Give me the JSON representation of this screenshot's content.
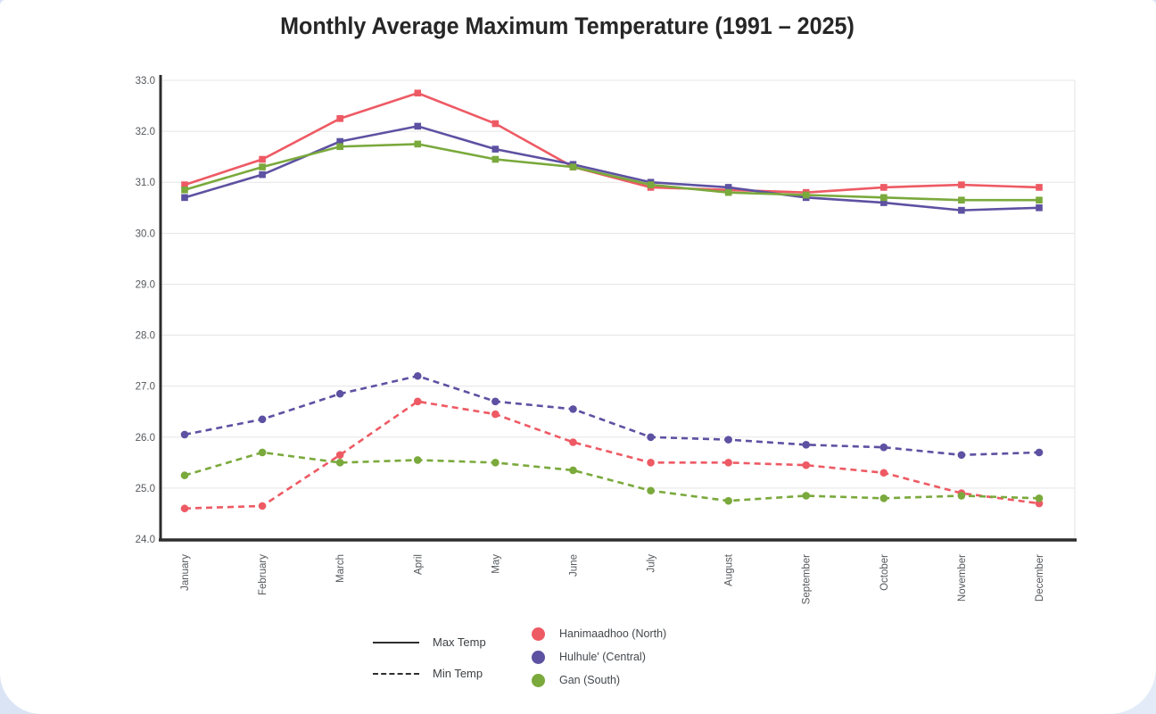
{
  "page": {
    "background": "#d8e2f3",
    "card_background": "#ffffff"
  },
  "title": "Monthly Average Maximum Temperature (1991 – 2025)",
  "legend": {
    "line_types": [
      {
        "label": "Max Temp",
        "style": "solid"
      },
      {
        "label": "Min Temp",
        "style": "dashed"
      }
    ],
    "stations": [
      {
        "label": "Hanimaadhoo (North)",
        "color": "#ee5a64"
      },
      {
        "label": "Hulhule' (Central)",
        "color": "#5d51a2"
      },
      {
        "label": "Gan (South)",
        "color": "#7aa93c"
      }
    ]
  },
  "chart_data": {
    "type": "line",
    "title": "Monthly Average Maximum Temperature (1991 – 2025)",
    "categories": [
      "January",
      "February",
      "March",
      "April",
      "May",
      "June",
      "July",
      "August",
      "September",
      "October",
      "November",
      "December"
    ],
    "ylim": [
      24.0,
      33.0
    ],
    "ytick_step": 1.0,
    "grid": true,
    "legend_position": "bottom",
    "axis_color": "#2d2d2d",
    "grid_color": "#e5e5e7",
    "tick_color": "#55585c",
    "series": [
      {
        "id": "hanimaadhoo-max",
        "name": "Hanimaadhoo (North) Max Temp",
        "station": "Hanimaadhoo (North)",
        "group": "Max Temp",
        "style": "solid",
        "color": "#ee5a64",
        "values": [
          30.95,
          31.45,
          32.25,
          32.75,
          32.15,
          31.3,
          30.9,
          30.85,
          30.8,
          30.9,
          30.95,
          30.9
        ]
      },
      {
        "id": "hulhule-max",
        "name": "Hulhule' (Central) Max Temp",
        "station": "Hulhule' (Central)",
        "group": "Max Temp",
        "style": "solid",
        "color": "#5d51a2",
        "values": [
          30.7,
          31.15,
          31.8,
          32.1,
          31.65,
          31.35,
          31.0,
          30.9,
          30.7,
          30.6,
          30.45,
          30.5
        ]
      },
      {
        "id": "gan-max",
        "name": "Gan (South) Max Temp",
        "station": "Gan (South)",
        "group": "Max Temp",
        "style": "solid",
        "color": "#7aa93c",
        "values": [
          30.85,
          31.3,
          31.7,
          31.75,
          31.45,
          31.3,
          30.95,
          30.8,
          30.75,
          30.7,
          30.65,
          30.65
        ]
      },
      {
        "id": "hanimaadhoo-min",
        "name": "Hanimaadhoo (North) Min Temp",
        "station": "Hanimaadhoo (North)",
        "group": "Min Temp",
        "style": "dashed",
        "color": "#ee5a64",
        "values": [
          24.6,
          24.65,
          25.65,
          26.7,
          26.45,
          25.9,
          25.5,
          25.5,
          25.45,
          25.3,
          24.9,
          24.7
        ]
      },
      {
        "id": "hulhule-min",
        "name": "Hulhule' (Central) Min Temp",
        "station": "Hulhule' (Central)",
        "group": "Min Temp",
        "style": "dashed",
        "color": "#5d51a2",
        "values": [
          26.05,
          26.35,
          26.85,
          27.2,
          26.7,
          26.55,
          26.0,
          25.95,
          25.85,
          25.8,
          25.65,
          25.7
        ]
      },
      {
        "id": "gan-min",
        "name": "Gan (South) Min Temp",
        "station": "Gan (South)",
        "group": "Min Temp",
        "style": "dashed",
        "color": "#7aa93c",
        "values": [
          25.25,
          25.7,
          25.5,
          25.55,
          25.5,
          25.35,
          24.95,
          24.75,
          24.85,
          24.8,
          24.85,
          24.8
        ]
      }
    ]
  }
}
